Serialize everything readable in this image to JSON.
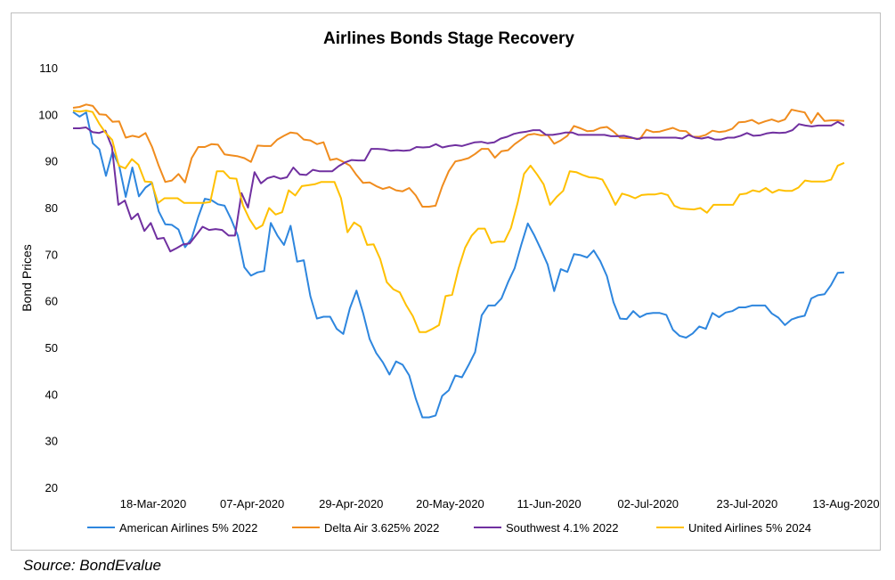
{
  "source": "Source: BondEvalue",
  "chart_data": {
    "type": "line",
    "title": "Airlines Bonds Stage Recovery",
    "xlabel": "",
    "ylabel": "Bond Prices",
    "ylim": [
      20,
      110
    ],
    "yticks": [
      20,
      30,
      40,
      50,
      60,
      70,
      80,
      90,
      100,
      110
    ],
    "x_tick_labels": [
      "18-Mar-2020",
      "07-Apr-2020",
      "29-Apr-2020",
      "20-May-2020",
      "11-Jun-2020",
      "02-Jul-2020",
      "23-Jul-2020",
      "13-Aug-2020"
    ],
    "grid": false,
    "legend_position": "bottom",
    "series": [
      {
        "name": "American Airlines 5% 2022",
        "color": "#2e86de",
        "values": [
          100.5,
          99.5,
          100.4,
          93.8,
          92.5,
          86.8,
          92.0,
          89.0,
          82.3,
          88.6,
          82.4,
          84.3,
          85.3,
          79.2,
          76.4,
          76.3,
          75.3,
          71.5,
          73.4,
          78.0,
          81.9,
          81.6,
          80.7,
          80.4,
          77.5,
          74.0,
          67.2,
          65.4,
          66.1,
          66.4,
          76.7,
          74.0,
          72.0,
          76.1,
          68.4,
          68.7,
          61.0,
          56.2,
          56.6,
          56.6,
          54.0,
          52.9,
          58.4,
          62.2,
          57.4,
          51.8,
          48.8,
          46.8,
          44.2,
          47.0,
          46.3,
          44.0,
          39.0,
          35.0,
          35.0,
          35.4,
          39.6,
          40.8,
          44.0,
          43.6,
          46.2,
          49.0,
          56.9,
          59.0,
          59.0,
          60.5,
          64.0,
          67.0,
          72.0,
          76.6,
          74.0,
          71.0,
          67.8,
          62.1,
          66.8,
          66.2,
          70.0,
          69.8,
          69.3,
          70.8,
          68.5,
          65.3,
          59.7,
          56.2,
          56.1,
          57.8,
          56.5,
          57.2,
          57.4,
          57.4,
          57.0,
          53.8,
          52.5,
          52.1,
          53.0,
          54.5,
          54.0,
          57.4,
          56.5,
          57.5,
          57.8,
          58.6,
          58.6,
          59.0,
          59.0,
          59.0,
          57.3,
          56.4,
          54.8,
          56.0,
          56.5,
          56.8,
          60.5,
          61.2,
          61.4,
          63.4,
          66.0,
          66.1
        ]
      },
      {
        "name": "Delta Air 3.625% 2022",
        "color": "#f08c1e",
        "values": [
          101.4,
          101.6,
          102.1,
          101.8,
          100.0,
          99.9,
          98.4,
          98.5,
          95.0,
          95.4,
          95.1,
          96.0,
          93.0,
          89.0,
          85.5,
          85.8,
          87.2,
          85.4,
          90.6,
          93.0,
          93.0,
          93.6,
          93.5,
          91.4,
          91.2,
          91.0,
          90.6,
          89.8,
          93.3,
          93.2,
          93.2,
          94.6,
          95.4,
          96.1,
          95.9,
          94.6,
          94.4,
          93.6,
          94.0,
          90.2,
          90.5,
          89.8,
          89.0,
          87.0,
          85.3,
          85.4,
          84.6,
          84.0,
          84.4,
          83.7,
          83.5,
          84.2,
          82.6,
          80.2,
          80.2,
          80.4,
          84.5,
          87.8,
          89.9,
          90.2,
          90.6,
          91.5,
          92.6,
          92.6,
          90.7,
          92.1,
          92.3,
          93.6,
          94.6,
          95.6,
          95.8,
          95.5,
          95.6,
          93.7,
          94.4,
          95.4,
          97.5,
          97.0,
          96.4,
          96.5,
          97.1,
          97.3,
          96.3,
          95.0,
          94.9,
          94.9,
          94.7,
          96.7,
          96.2,
          96.3,
          96.7,
          97.1,
          96.5,
          96.4,
          95.2,
          95.2,
          95.6,
          96.5,
          96.2,
          96.4,
          96.9,
          98.3,
          98.4,
          98.8,
          98.0,
          98.5,
          98.9,
          98.4,
          98.9,
          101.0,
          100.7,
          100.4,
          98.1,
          100.3,
          98.6,
          98.7,
          98.7,
          98.6
        ]
      },
      {
        "name": "Southwest 4.1% 2022",
        "color": "#7030a0",
        "values": [
          97.0,
          97.0,
          97.2,
          96.2,
          96.0,
          96.5,
          93.0,
          80.6,
          81.5,
          77.5,
          78.7,
          75.0,
          76.7,
          73.3,
          73.5,
          70.6,
          71.3,
          72.1,
          72.3,
          74.1,
          75.9,
          75.2,
          75.4,
          75.2,
          74.0,
          74.0,
          83.1,
          80.0,
          87.6,
          85.2,
          86.3,
          86.7,
          86.2,
          86.5,
          88.6,
          87.1,
          87.0,
          88.1,
          87.8,
          87.8,
          87.8,
          88.9,
          89.7,
          90.2,
          90.1,
          90.1,
          92.6,
          92.6,
          92.5,
          92.2,
          92.3,
          92.2,
          92.3,
          93.0,
          92.9,
          93.0,
          93.6,
          92.9,
          93.2,
          93.4,
          93.2,
          93.6,
          94.0,
          94.1,
          93.8,
          94.0,
          94.8,
          95.2,
          95.8,
          96.1,
          96.3,
          96.6,
          96.6,
          95.6,
          95.6,
          95.8,
          96.1,
          96.1,
          95.6,
          95.6,
          95.6,
          95.6,
          95.6,
          95.3,
          95.3,
          95.4,
          95.1,
          94.7,
          95.0,
          95.0,
          95.0,
          95.0,
          95.0,
          95.0,
          94.8,
          95.6,
          95.0,
          94.8,
          95.1,
          94.6,
          94.6,
          95.0,
          95.0,
          95.4,
          96.0,
          95.4,
          95.5,
          95.9,
          96.1,
          96.0,
          96.1,
          96.6,
          97.9,
          97.6,
          97.4,
          97.6,
          97.6,
          97.6,
          98.4,
          97.6
        ]
      },
      {
        "name": "United Airlines 5% 2024",
        "color": "#ffc000",
        "values": [
          100.8,
          100.6,
          100.8,
          100.5,
          98.0,
          96.0,
          94.5,
          89.0,
          88.4,
          90.4,
          89.2,
          85.6,
          85.5,
          81.0,
          82.0,
          82.0,
          82.0,
          81.0,
          81.0,
          81.0,
          81.0,
          81.2,
          87.8,
          87.8,
          86.3,
          86.2,
          80.5,
          77.5,
          75.4,
          76.2,
          79.9,
          78.5,
          79.0,
          83.7,
          82.6,
          84.6,
          84.8,
          85.0,
          85.5,
          85.5,
          85.5,
          82.0,
          74.7,
          76.8,
          75.9,
          72.0,
          72.1,
          69.0,
          64.0,
          62.5,
          61.8,
          59.0,
          56.7,
          53.3,
          53.3,
          54.0,
          54.8,
          61.0,
          61.3,
          67.0,
          71.4,
          74.0,
          75.5,
          75.5,
          72.4,
          72.7,
          72.7,
          75.6,
          80.9,
          87.2,
          89.0,
          87.1,
          85.0,
          80.6,
          82.3,
          83.6,
          87.8,
          87.6,
          87.0,
          86.5,
          86.4,
          86.0,
          83.5,
          80.6,
          83.0,
          82.6,
          82.0,
          82.7,
          82.8,
          82.8,
          83.1,
          82.7,
          80.4,
          79.8,
          79.7,
          79.6,
          79.9,
          78.9,
          80.6,
          80.6,
          80.6,
          80.6,
          82.8,
          83.0,
          83.7,
          83.4,
          84.2,
          83.2,
          83.8,
          83.6,
          83.6,
          84.3,
          85.8,
          85.6,
          85.6,
          85.6,
          86.0,
          89.0,
          89.6
        ]
      }
    ]
  }
}
